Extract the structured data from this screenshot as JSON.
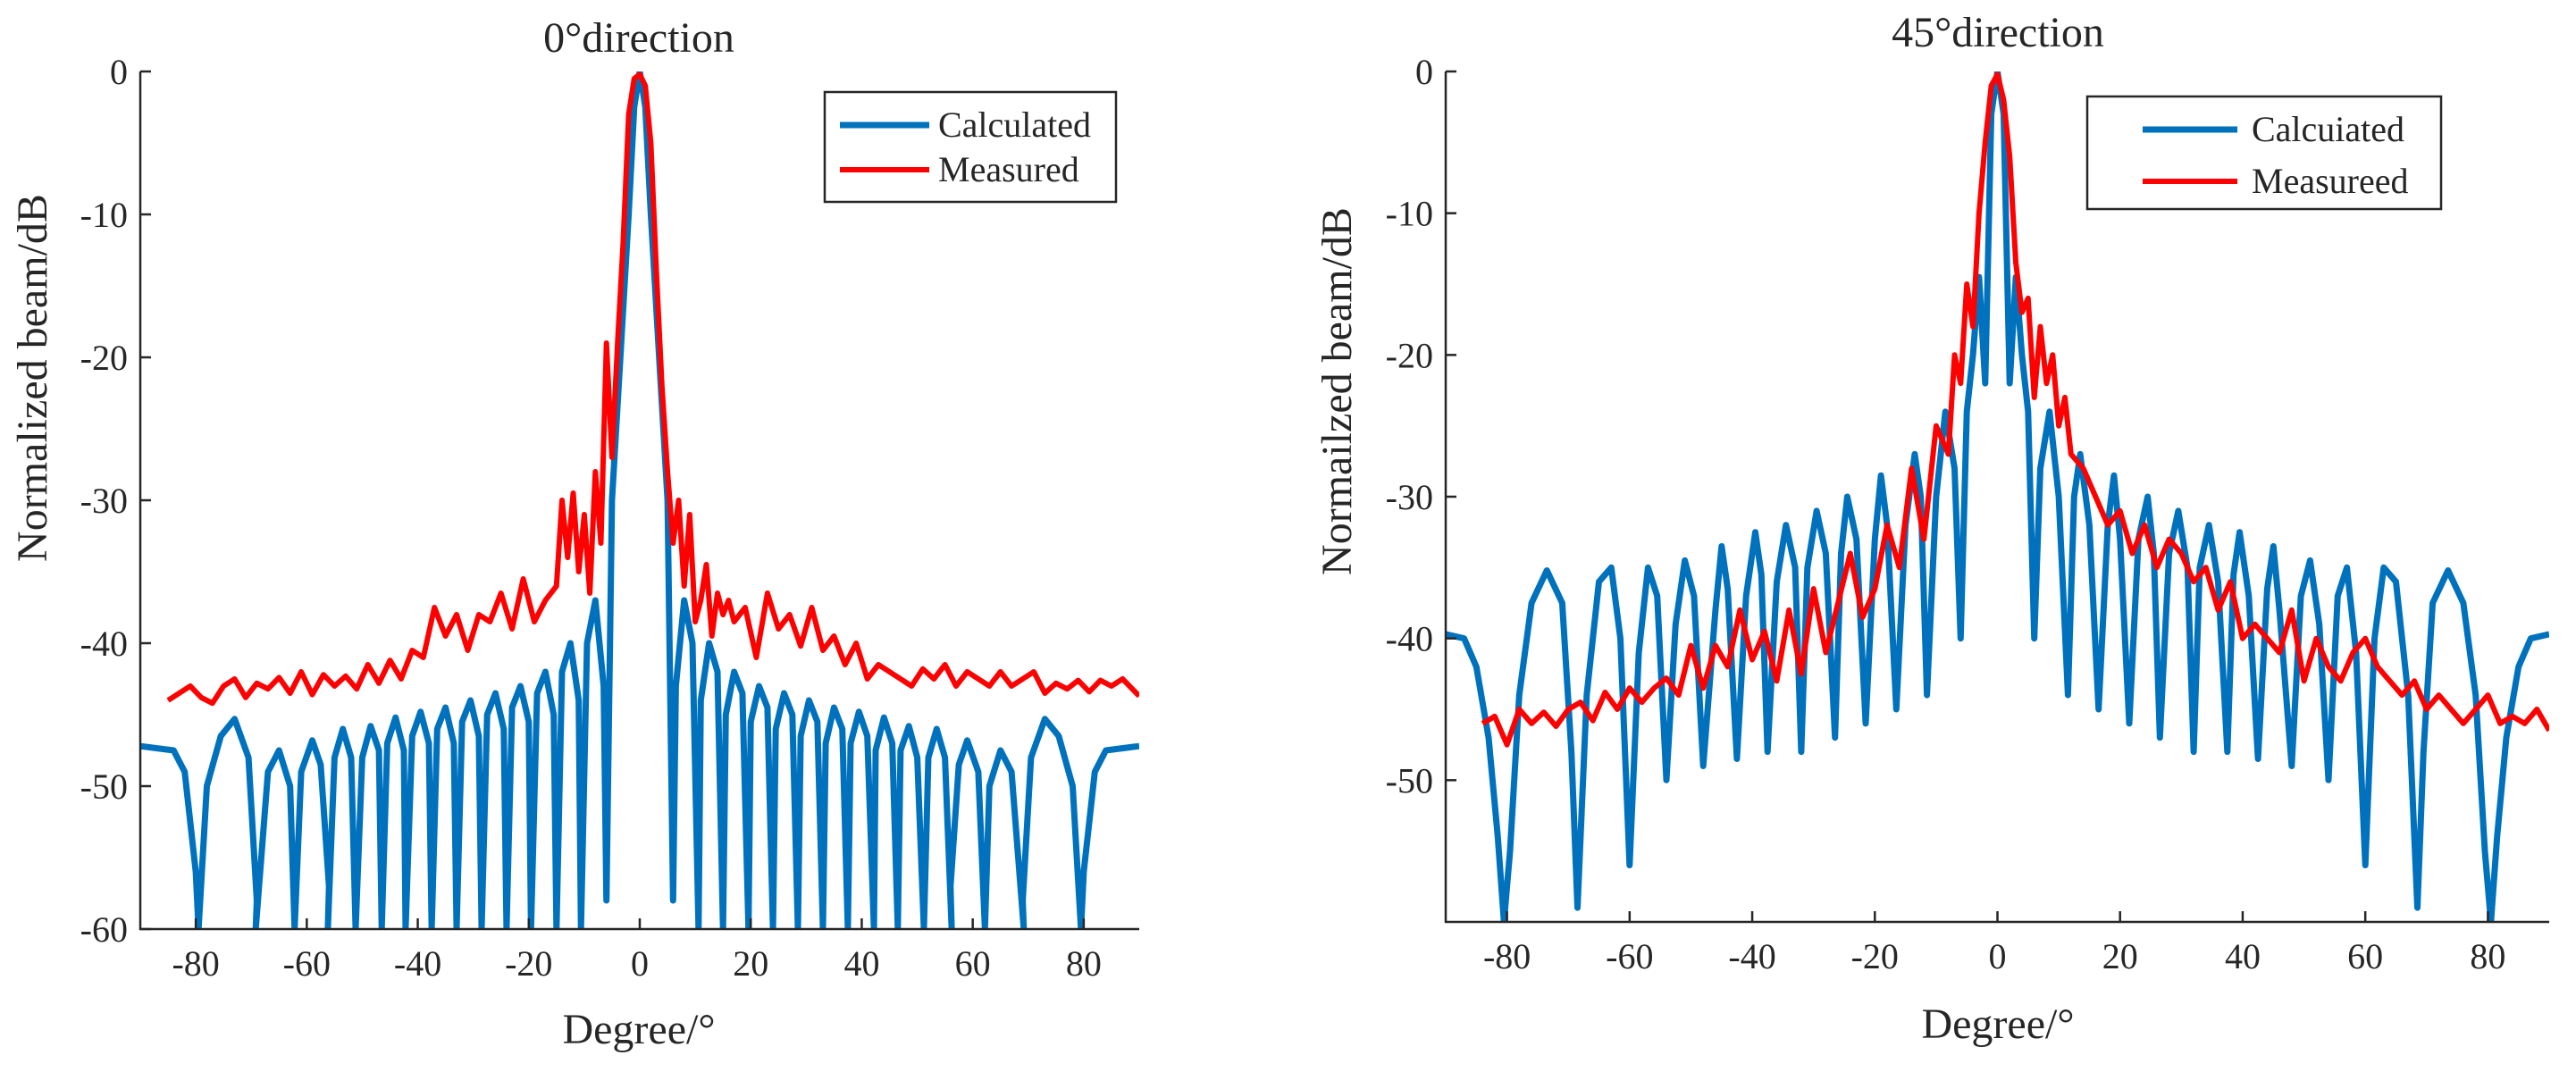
{
  "chart_data": [
    {
      "type": "line",
      "title": "0°direction",
      "xlabel": "Degree/°",
      "ylabel": "Normalized beam/dB",
      "xlim": [
        -90,
        90
      ],
      "ylim": [
        -60,
        0
      ],
      "xticks": [
        -80,
        -60,
        -40,
        -20,
        0,
        20,
        40,
        60,
        80
      ],
      "yticks": [
        0,
        -10,
        -20,
        -30,
        -40,
        -50,
        -60
      ],
      "legend_position": "top-right",
      "series": [
        {
          "name": "Calculated",
          "color": "#0072BD",
          "x": [
            -90,
            -84,
            -82,
            -80,
            -79.5,
            -78,
            -75.5,
            -73,
            -70.5,
            -69,
            -69.2,
            -67,
            -65,
            -63,
            -62.2,
            -61,
            -59,
            -57.5,
            -56,
            -56.2,
            -55,
            -53.5,
            -52,
            -51.2,
            -50,
            -48.5,
            -47,
            -46.5,
            -45.5,
            -44,
            -42.5,
            -42.2,
            -41,
            -39.5,
            -38,
            -37.5,
            -36.5,
            -35,
            -33.5,
            -33,
            -32,
            -30.5,
            -29,
            -28.5,
            -27.5,
            -26,
            -24.5,
            -24,
            -23,
            -21.5,
            -20,
            -19.6,
            -18.5,
            -17,
            -15.5,
            -15,
            -14,
            -12.5,
            -11,
            -10.6,
            -9.5,
            -8,
            -6.5,
            -6,
            -5,
            -3.5,
            -2,
            -1,
            0,
            1,
            2,
            3.5,
            5,
            6,
            6.5,
            8,
            9.5,
            10.6,
            11,
            12.5,
            14,
            15,
            15.5,
            17,
            18.5,
            19.6,
            20,
            21.5,
            23,
            24,
            24.5,
            26,
            27.5,
            28.5,
            29,
            30.5,
            32,
            33,
            33.5,
            35,
            36.5,
            37.5,
            38,
            39.5,
            41,
            42.2,
            42.5,
            44,
            45.5,
            46.5,
            47,
            48.5,
            50,
            51.2,
            52,
            53.5,
            55,
            56.2,
            56,
            57.5,
            59,
            61,
            62.2,
            63,
            65,
            67,
            69.2,
            69,
            70.5,
            73,
            75.5,
            78,
            79.5,
            80,
            82,
            84,
            90
          ],
          "values": [
            -47.2,
            -47.5,
            -49,
            -56,
            -60,
            -50,
            -46.5,
            -45.3,
            -48,
            -58,
            -60,
            -49,
            -47.5,
            -50,
            -60,
            -49,
            -46.8,
            -48.5,
            -57,
            -60,
            -48,
            -46,
            -48,
            -60,
            -48,
            -45.8,
            -47.5,
            -60,
            -47,
            -45.2,
            -47.5,
            -60,
            -46.5,
            -44.8,
            -47,
            -60,
            -46,
            -44.5,
            -47,
            -60,
            -45.5,
            -44,
            -46.5,
            -60,
            -45,
            -43.5,
            -46,
            -60,
            -44.5,
            -43,
            -45.5,
            -60,
            -43.5,
            -42,
            -45,
            -60,
            -42,
            -40,
            -44,
            -60,
            -40,
            -37,
            -43,
            -58,
            -30,
            -20,
            -10,
            -2.5,
            0,
            -2.5,
            -10,
            -20,
            -30,
            -58,
            -43,
            -37,
            -40,
            -60,
            -44,
            -40,
            -42,
            -60,
            -45,
            -42,
            -43.5,
            -60,
            -45.5,
            -43,
            -44.5,
            -60,
            -46,
            -43.5,
            -45,
            -60,
            -46.5,
            -44,
            -45.5,
            -60,
            -47,
            -44.5,
            -46,
            -60,
            -47,
            -44.8,
            -46.5,
            -60,
            -47.5,
            -45.2,
            -47,
            -60,
            -47.5,
            -45.8,
            -48,
            -60,
            -48,
            -46,
            -48,
            -60,
            -57,
            -48.5,
            -46.8,
            -49,
            -60,
            -50,
            -47.5,
            -49,
            -60,
            -58,
            -48,
            -45.3,
            -46.5,
            -50,
            -60,
            -56,
            -49,
            -47.5,
            -47.2
          ]
        },
        {
          "name": "Measured",
          "color": "#FF0000",
          "x": [
            -85,
            -83,
            -81,
            -79,
            -77,
            -75,
            -73,
            -71,
            -69,
            -67,
            -65,
            -63,
            -61,
            -59,
            -57,
            -55,
            -53,
            -51,
            -49,
            -47,
            -45,
            -43,
            -41,
            -39,
            -37,
            -35,
            -33,
            -31,
            -29,
            -27,
            -25,
            -23,
            -21,
            -19,
            -17,
            -15,
            -14,
            -13,
            -12,
            -11,
            -10,
            -9,
            -8,
            -7,
            -6,
            -5,
            -4,
            -3,
            -2,
            -1,
            0,
            1,
            2,
            3,
            4,
            5,
            6,
            7,
            8,
            9,
            10,
            11,
            12,
            13,
            14,
            15,
            16,
            17,
            19,
            21,
            23,
            25,
            27,
            29,
            31,
            33,
            35,
            37,
            39,
            41,
            43,
            45,
            47,
            49,
            51,
            53,
            55,
            57,
            59,
            61,
            63,
            65,
            67,
            69,
            71,
            73,
            75,
            77,
            79,
            81,
            83,
            85,
            87,
            90
          ],
          "values": [
            -44,
            -43.5,
            -43,
            -43.8,
            -44.2,
            -43,
            -42.5,
            -43.8,
            -42.8,
            -43.2,
            -42.4,
            -43.5,
            -42,
            -43.6,
            -42.2,
            -43,
            -42.3,
            -43.2,
            -41.5,
            -42.8,
            -41.2,
            -42.5,
            -40.5,
            -41,
            -37.5,
            -39.5,
            -38,
            -40.5,
            -38,
            -38.5,
            -36.5,
            -39,
            -35.5,
            -38.5,
            -37,
            -36,
            -30,
            -34,
            -29.5,
            -35,
            -31,
            -36.5,
            -28,
            -33,
            -19,
            -27,
            -19,
            -12,
            -3,
            -0.5,
            -0.2,
            -1,
            -5,
            -14,
            -22,
            -28,
            -33,
            -30,
            -36,
            -31,
            -38.5,
            -37,
            -34.5,
            -39.5,
            -36.5,
            -38,
            -37,
            -38.5,
            -37.5,
            -41,
            -36.5,
            -39,
            -38,
            -40.2,
            -37.5,
            -40.5,
            -39.5,
            -41.5,
            -40,
            -42.5,
            -41.5,
            -42,
            -42.5,
            -43,
            -41.8,
            -42.5,
            -41.5,
            -43,
            -42,
            -42.5,
            -43,
            -42,
            -43,
            -42.5,
            -42,
            -43.5,
            -42.8,
            -43.2,
            -42.6,
            -43.4,
            -42.6,
            -43,
            -42.5,
            -43.7
          ]
        }
      ]
    },
    {
      "type": "line",
      "title": "45°direction",
      "xlabel": "Degree/°",
      "ylabel": "Normailzed beam/dB",
      "xlim": [
        -90,
        90
      ],
      "ylim": [
        -60,
        0
      ],
      "xticks": [
        -80,
        -60,
        -40,
        -20,
        0,
        20,
        40,
        60,
        80
      ],
      "yticks": [
        0,
        -10,
        -20,
        -30,
        -40,
        -50
      ],
      "legend_position": "top-right",
      "series": [
        {
          "name": "Calcuiated",
          "color": "#0072BD",
          "x": [
            -90,
            -87,
            -85,
            -83,
            -81.5,
            -80.5,
            -79.5,
            -78,
            -76,
            -73.5,
            -71,
            -69.5,
            -68.5,
            -67,
            -65,
            -63,
            -61.5,
            -60,
            -58.5,
            -57,
            -55.5,
            -54,
            -52.5,
            -51,
            -49.5,
            -48,
            -46,
            -45,
            -44,
            -42.5,
            -41,
            -39.5,
            -38.5,
            -37.5,
            -36,
            -34.5,
            -33,
            -32,
            -31,
            -29.5,
            -28,
            -26.5,
            -25.5,
            -24.5,
            -23,
            -21.5,
            -20,
            -19,
            -18,
            -16.5,
            -15,
            -13.5,
            -12.5,
            -11.5,
            -10,
            -8.5,
            -7,
            -6,
            -5,
            -4,
            -3,
            -2,
            -1,
            0,
            1,
            2,
            3,
            4,
            5,
            6,
            7,
            8.5,
            10,
            11.5,
            12.5,
            13.5,
            15,
            16.5,
            18,
            19,
            20,
            21.5,
            23,
            24.5,
            25.5,
            26.5,
            28,
            29.5,
            31,
            32,
            33,
            34.5,
            36,
            37.5,
            38.5,
            39.5,
            41,
            42.5,
            44,
            45,
            46,
            48,
            49.5,
            51,
            52.5,
            54,
            55.5,
            57,
            58.5,
            60,
            61.5,
            63,
            65,
            67,
            68.5,
            69.5,
            71,
            73.5,
            76,
            78,
            79.5,
            80.5,
            81.5,
            83,
            85,
            87,
            90
          ],
          "values": [
            -39.7,
            -40,
            -42,
            -47,
            -54,
            -60,
            -55,
            -44,
            -37.5,
            -35.2,
            -37.5,
            -48,
            -59,
            -44,
            -36,
            -35,
            -40,
            -56,
            -41,
            -35,
            -37,
            -50,
            -39,
            -34.5,
            -37,
            -49,
            -38,
            -33.5,
            -36.5,
            -48.5,
            -37,
            -32.5,
            -35.5,
            -48,
            -36,
            -32,
            -35,
            -48,
            -35,
            -31,
            -34,
            -47,
            -34,
            -30,
            -33,
            -46,
            -33,
            -28.5,
            -32,
            -45,
            -32,
            -27,
            -30,
            -44,
            -30,
            -24,
            -28,
            -40,
            -24,
            -20,
            -14.5,
            -22,
            -3,
            0,
            -3,
            -22,
            -14.5,
            -20,
            -24,
            -40,
            -28,
            -24,
            -30,
            -44,
            -30,
            -27,
            -32,
            -45,
            -32,
            -28.5,
            -33,
            -46,
            -33,
            -30,
            -34,
            -47,
            -34,
            -31,
            -35,
            -48,
            -35,
            -32,
            -36,
            -48,
            -35.5,
            -32.5,
            -37,
            -48.5,
            -36.5,
            -33.5,
            -38,
            -49,
            -37,
            -34.5,
            -39,
            -50,
            -37,
            -35,
            -41,
            -56,
            -40,
            -35,
            -36,
            -44,
            -59,
            -48,
            -37.5,
            -35.2,
            -37.5,
            -44,
            -55,
            -60,
            -54,
            -47,
            -42,
            -40,
            -39.7
          ]
        },
        {
          "name": "Measureed",
          "color": "#FF0000",
          "x": [
            -84,
            -82,
            -80,
            -78,
            -76,
            -74,
            -72,
            -70,
            -68,
            -66,
            -64,
            -62,
            -60,
            -58,
            -56,
            -54,
            -52,
            -50,
            -48,
            -46,
            -44,
            -42,
            -40,
            -38,
            -36,
            -34,
            -32,
            -30,
            -28,
            -26,
            -24,
            -22,
            -20,
            -18,
            -16,
            -14,
            -12,
            -10,
            -8,
            -7,
            -6,
            -5,
            -4,
            -3,
            -2,
            -1,
            0,
            1,
            2,
            3,
            4,
            5,
            6,
            7,
            8,
            9,
            10,
            11,
            12,
            14,
            16,
            18,
            20,
            22,
            24,
            26,
            28,
            30,
            32,
            34,
            36,
            38,
            40,
            42,
            44,
            46,
            48,
            50,
            52,
            54,
            56,
            58,
            60,
            62,
            64,
            66,
            68,
            70,
            72,
            74,
            76,
            78,
            80,
            82,
            84,
            86,
            88,
            90
          ],
          "values": [
            -46,
            -45.5,
            -47.5,
            -45,
            -46,
            -45.2,
            -46.2,
            -45,
            -44.5,
            -45.8,
            -43.8,
            -45,
            -43.5,
            -44.5,
            -43.5,
            -42.8,
            -44,
            -40.5,
            -43.5,
            -40.5,
            -42,
            -38,
            -41.5,
            -39.5,
            -43,
            -38,
            -42.5,
            -36.5,
            -41,
            -37.5,
            -34,
            -38.5,
            -36.5,
            -32,
            -35,
            -28,
            -33,
            -25,
            -27,
            -20,
            -22,
            -15,
            -18,
            -10,
            -5,
            -1,
            -0.2,
            -2,
            -6,
            -13.5,
            -17,
            -16,
            -23,
            -18,
            -22,
            -20,
            -25,
            -23,
            -27,
            -28,
            -30,
            -32,
            -31,
            -34,
            -32,
            -35,
            -33,
            -34,
            -36,
            -35,
            -38,
            -36,
            -40,
            -39,
            -40,
            -41,
            -38,
            -43,
            -40,
            -42,
            -43,
            -41,
            -40,
            -42,
            -43,
            -44,
            -43,
            -45,
            -44,
            -45,
            -46,
            -45,
            -44,
            -46,
            -45.5,
            -46,
            -45,
            -46.5
          ]
        }
      ]
    }
  ]
}
